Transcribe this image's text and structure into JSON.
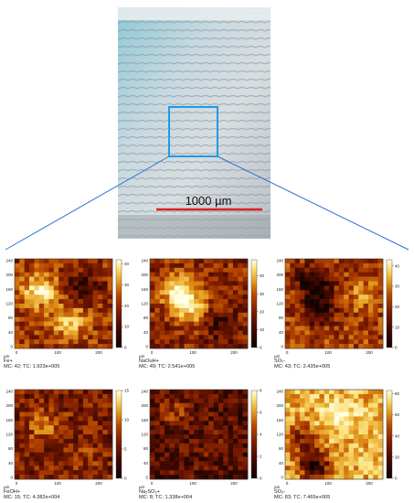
{
  "micrograph": {
    "scale_bar_label": "1000 µm",
    "scale_bar_color": "#e02020",
    "roi_color": "#1e9be8",
    "connector_color": "#2e6fd6"
  },
  "axis_unit": "µm",
  "colormap": [
    "#120200",
    "#3d0800",
    "#7a1a00",
    "#b84800",
    "#e39a1c",
    "#fbe17a",
    "#ffffe6"
  ],
  "panels": [
    {
      "label": "Fe+",
      "stats": "MC:    42; TC: 1.923e+005",
      "cb_ticks": [
        "40",
        "30",
        "20",
        "10",
        "0"
      ],
      "cb_max": 42
    },
    {
      "label": "NaOuH+",
      "stats": "MC:    49; TC: 2.541e+005",
      "cb_ticks": [
        "40",
        "30",
        "20",
        "10",
        "0"
      ],
      "cb_max": 49
    },
    {
      "label": "SO₂-",
      "stats": "MC:    43; TC: 2.435e+005",
      "cb_ticks": [
        "40",
        "30",
        "20",
        "10",
        "0"
      ],
      "cb_max": 43
    },
    {
      "label": "FeOH+",
      "stats": "MC:    15; TC: 4.382e+004",
      "cb_ticks": [
        "15",
        "10",
        "5",
        "0"
      ],
      "cb_max": 15
    },
    {
      "label": "Na₂SO₃+",
      "stats": "MC:     8; TC: 1.338e+004",
      "cb_ticks": [
        "8",
        "6",
        "4",
        "2",
        "0"
      ],
      "cb_max": 8
    },
    {
      "label": "SO₃-",
      "stats": "MC:    83; TC: 7.465e+005",
      "cb_ticks": [
        "80",
        "60",
        "40",
        "20",
        "0"
      ],
      "cb_max": 83
    }
  ],
  "x_ticks": [
    "0",
    "100",
    "200"
  ],
  "y_ticks": [
    "240",
    "200",
    "160",
    "120",
    "80",
    "40",
    "0"
  ]
}
